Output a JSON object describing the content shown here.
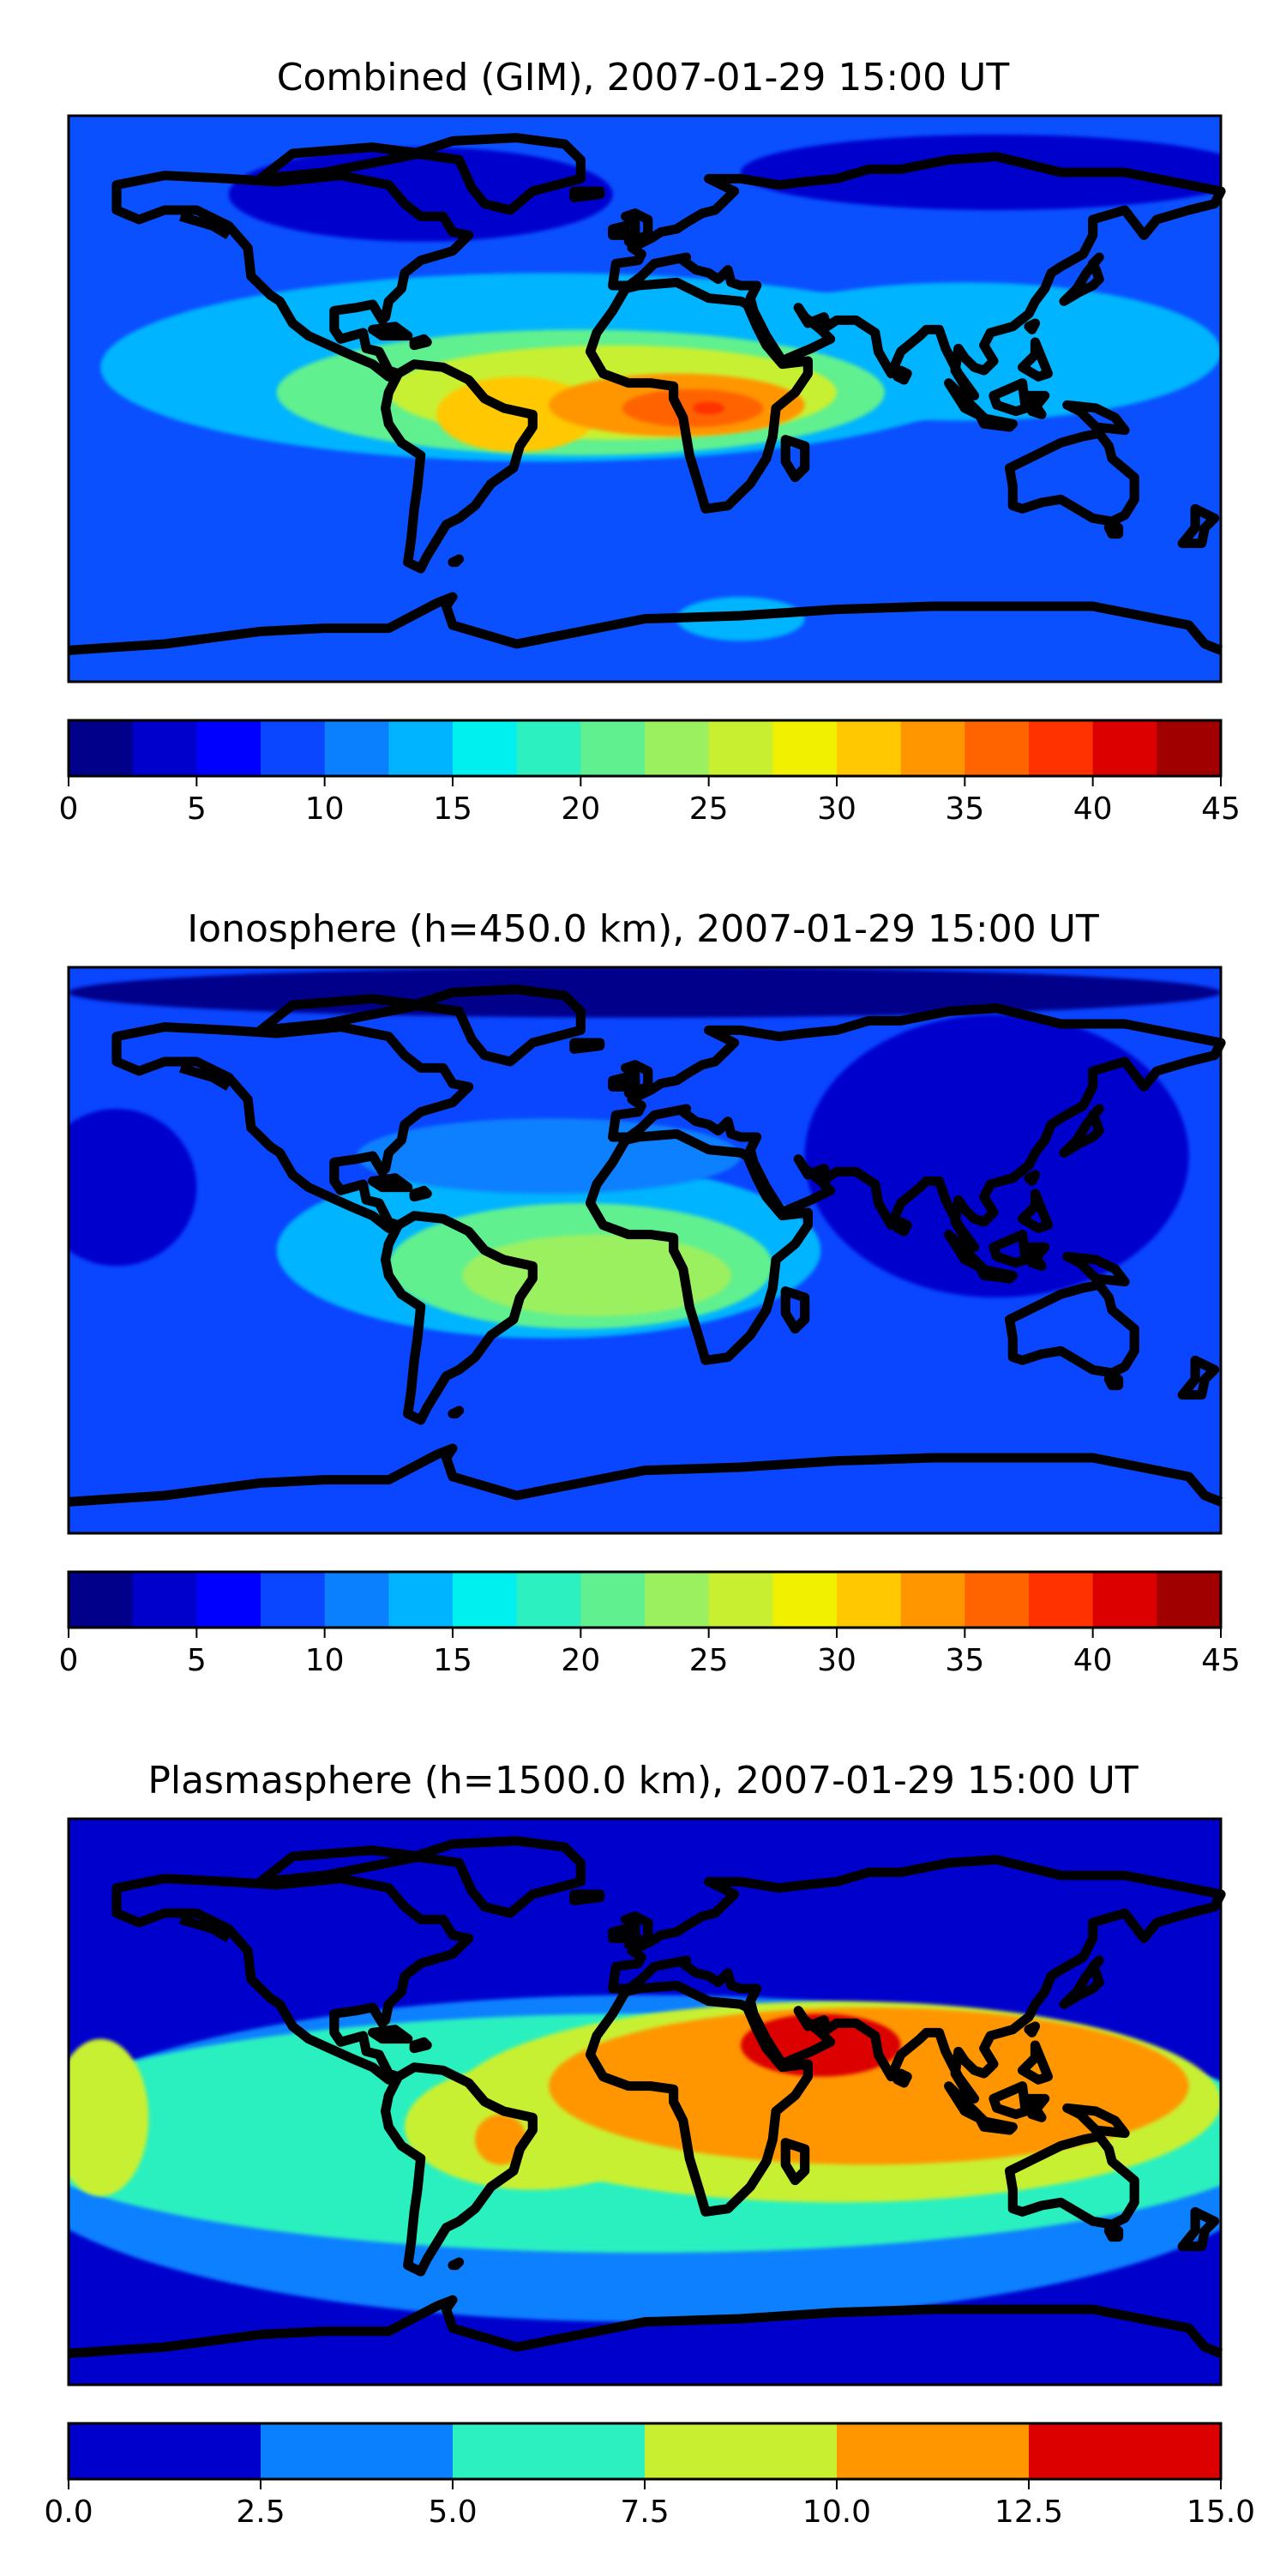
{
  "panels": [
    {
      "title": "Combined (GIM), 2007-01-29 15:00 UT",
      "colorbar": {
        "ticks": [
          "0",
          "5",
          "10",
          "15",
          "20",
          "25",
          "30",
          "35",
          "40",
          "45"
        ],
        "colors": [
          "#00008b",
          "#0000cd",
          "#0000ff",
          "#0a45ff",
          "#0a80ff",
          "#00b4ff",
          "#00f0f0",
          "#2cf0c0",
          "#60f090",
          "#9bf060",
          "#c8f030",
          "#f0f000",
          "#ffc800",
          "#ff9600",
          "#ff6400",
          "#ff3200",
          "#dc0000",
          "#a00000"
        ]
      },
      "field": {
        "base_color": "#0a50ff",
        "blobs": [
          {
            "lon": -70,
            "lat": 65,
            "rx": 60,
            "ry": 15,
            "color": "#0000cd"
          },
          {
            "lon": 110,
            "lat": 72,
            "rx": 80,
            "ry": 12,
            "color": "#0000cd"
          },
          {
            "lon": -30,
            "lat": 10,
            "rx": 140,
            "ry": 30,
            "color": "#00b4ff"
          },
          {
            "lon": 100,
            "lat": 15,
            "rx": 80,
            "ry": 22,
            "color": "#00b4ff"
          },
          {
            "lon": -20,
            "lat": 2,
            "rx": 95,
            "ry": 20,
            "color": "#60f090"
          },
          {
            "lon": -10,
            "lat": 2,
            "rx": 70,
            "ry": 15,
            "color": "#c8f030"
          },
          {
            "lon": -40,
            "lat": -5,
            "rx": 25,
            "ry": 12,
            "color": "#ffc800"
          },
          {
            "lon": 10,
            "lat": -2,
            "rx": 40,
            "ry": 10,
            "color": "#ff9600"
          },
          {
            "lon": 15,
            "lat": -3,
            "rx": 22,
            "ry": 6,
            "color": "#ff6400"
          },
          {
            "lon": 20,
            "lat": -3,
            "rx": 5,
            "ry": 2,
            "color": "#ff3200"
          },
          {
            "lon": 30,
            "lat": -70,
            "rx": 20,
            "ry": 7,
            "color": "#00b4ff"
          }
        ]
      }
    },
    {
      "title": "Ionosphere  (h=450.0 km), 2007-01-29 15:00 UT",
      "colorbar": {
        "ticks": [
          "0",
          "5",
          "10",
          "15",
          "20",
          "25",
          "30",
          "35",
          "40",
          "45"
        ],
        "colors": [
          "#00008b",
          "#0000cd",
          "#0000ff",
          "#0a45ff",
          "#0a80ff",
          "#00b4ff",
          "#00f0f0",
          "#2cf0c0",
          "#60f090",
          "#9bf060",
          "#c8f030",
          "#f0f000",
          "#ffc800",
          "#ff9600",
          "#ff6400",
          "#ff3200",
          "#dc0000",
          "#a00000"
        ]
      },
      "field": {
        "base_color": "#0a45ff",
        "blobs": [
          {
            "lon": 110,
            "lat": 30,
            "rx": 60,
            "ry": 45,
            "color": "#0000cd"
          },
          {
            "lon": -165,
            "lat": 20,
            "rx": 25,
            "ry": 25,
            "color": "#0000cd"
          },
          {
            "lon": 0,
            "lat": 82,
            "rx": 180,
            "ry": 8,
            "color": "#00008b"
          },
          {
            "lon": -30,
            "lat": 0,
            "rx": 85,
            "ry": 28,
            "color": "#00b4ff"
          },
          {
            "lon": -30,
            "lat": 30,
            "rx": 60,
            "ry": 12,
            "color": "#0a80ff"
          },
          {
            "lon": -20,
            "lat": -5,
            "rx": 60,
            "ry": 20,
            "color": "#60f090"
          },
          {
            "lon": -15,
            "lat": -8,
            "rx": 42,
            "ry": 13,
            "color": "#9bf060"
          }
        ]
      }
    },
    {
      "title": "Plasmasphere (h=1500.0 km), 2007-01-29 15:00 UT",
      "colorbar": {
        "ticks": [
          "0.0",
          "2.5",
          "5.0",
          "7.5",
          "10.0",
          "12.5",
          "15.0"
        ],
        "colors": [
          "#0000cd",
          "#0a80ff",
          "#2cf0c0",
          "#c8f030",
          "#ff9600",
          "#dc0000"
        ]
      },
      "field": {
        "base_color": "#0000cd",
        "blobs": [
          {
            "lon": 0,
            "lat": -18,
            "rx": 200,
            "ry": 52,
            "color": "#0a80ff"
          },
          {
            "lon": 0,
            "lat": -10,
            "rx": 200,
            "ry": 38,
            "color": "#2cf0c0"
          },
          {
            "lon": 60,
            "lat": 0,
            "rx": 120,
            "ry": 32,
            "color": "#c8f030"
          },
          {
            "lon": -35,
            "lat": -8,
            "rx": 40,
            "ry": 20,
            "color": "#c8f030"
          },
          {
            "lon": -170,
            "lat": -5,
            "rx": 15,
            "ry": 25,
            "color": "#c8f030"
          },
          {
            "lon": 70,
            "lat": 5,
            "rx": 100,
            "ry": 25,
            "color": "#ff9600"
          },
          {
            "lon": -45,
            "lat": -12,
            "rx": 8,
            "ry": 8,
            "color": "#ff9600"
          },
          {
            "lon": 55,
            "lat": 18,
            "rx": 25,
            "ry": 10,
            "color": "#dc0000"
          }
        ]
      }
    }
  ]
}
